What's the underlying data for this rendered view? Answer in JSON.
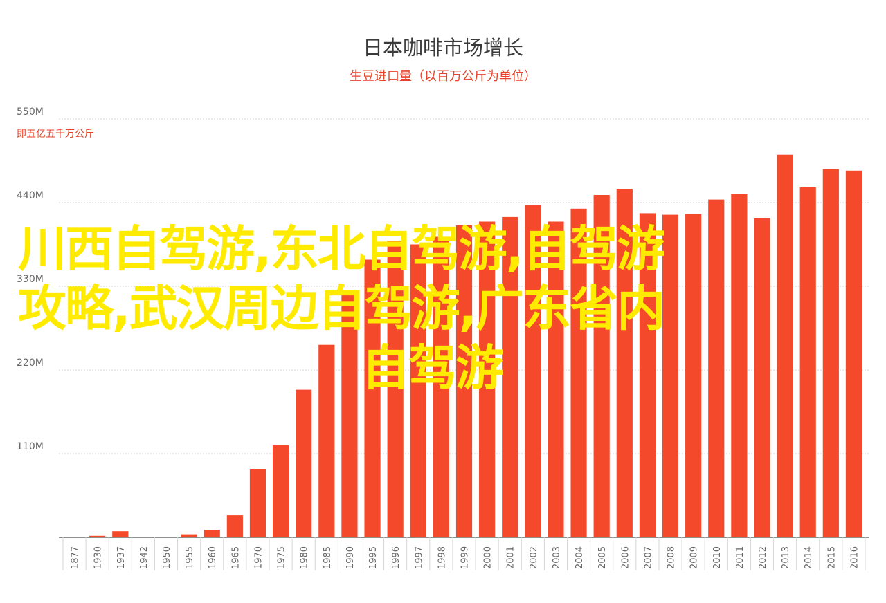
{
  "colors": {
    "bar": "#f4492b",
    "accent": "#e8432a",
    "grid": "#d6d6d6",
    "axis": "#666666",
    "overlay_text": "#ffeb00"
  },
  "overlay": {
    "line1": "川西自驾游,东北自驾游,自驾游",
    "line2": "攻略,武汉周边自驾游,广东省内",
    "line3": "自驾游"
  },
  "chart_data": {
    "type": "bar",
    "title": "日本咖啡市场增长",
    "subtitle": "生豆进口量（以百万公斤为单位）",
    "ylabel": "即五亿五千万公斤",
    "ylim": [
      0,
      550
    ],
    "yticks": [
      110,
      220,
      330,
      440,
      550
    ],
    "ytick_labels": [
      "110M",
      "220M",
      "330M",
      "440M",
      "550M"
    ],
    "grid": true,
    "categories": [
      "1877",
      "1930",
      "1937",
      "1942",
      "1950",
      "1955",
      "1960",
      "1965",
      "1970",
      "1975",
      "1980",
      "1985",
      "1990",
      "1995",
      "1996",
      "1997",
      "1998",
      "1999",
      "2000",
      "2001",
      "2002",
      "2003",
      "2004",
      "2005",
      "2006",
      "2007",
      "2008",
      "2009",
      "2010",
      "2011",
      "2012",
      "2013",
      "2014",
      "2015",
      "2016"
    ],
    "values": [
      0,
      2,
      8,
      0,
      0,
      4,
      10,
      29,
      90,
      121,
      194,
      253,
      320,
      365,
      390,
      385,
      395,
      410,
      415,
      421,
      437,
      415,
      432,
      450,
      458,
      426,
      424,
      425,
      444,
      451,
      420,
      503,
      460,
      484,
      482
    ]
  }
}
